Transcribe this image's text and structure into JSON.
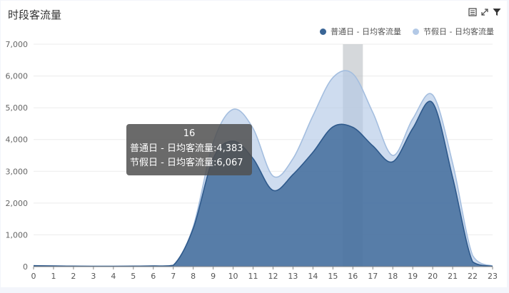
{
  "header": {
    "title": "时段客流量"
  },
  "toolbar": {
    "icons": [
      "data-view-icon",
      "zoom-icon",
      "filter-icon"
    ]
  },
  "colors": {
    "series1": "#3a6596",
    "series2": "#b3c9e6",
    "hover_band": "#b9bec3"
  },
  "chart_data": {
    "type": "area",
    "title": "时段客流量",
    "xlabel": "",
    "ylabel": "",
    "x": [
      "0",
      "1",
      "2",
      "3",
      "4",
      "5",
      "6",
      "7",
      "8",
      "9",
      "10",
      "11",
      "12",
      "13",
      "14",
      "15",
      "16",
      "17",
      "18",
      "19",
      "20",
      "21",
      "22",
      "23"
    ],
    "ylim": [
      0,
      7000
    ],
    "yticks": [
      "0",
      "1,000",
      "2,000",
      "3,000",
      "4,000",
      "5,000",
      "6,000",
      "7,000"
    ],
    "grid": true,
    "legend_position": "top-right",
    "series": [
      {
        "name": "普通日 - 日均客流量",
        "values": [
          30,
          20,
          15,
          10,
          10,
          15,
          20,
          40,
          1200,
          3400,
          3950,
          3400,
          2400,
          2900,
          3600,
          4400,
          4383,
          3800,
          3300,
          4350,
          5150,
          2800,
          150,
          10
        ]
      },
      {
        "name": "节假日 - 日均客流量",
        "values": [
          30,
          20,
          15,
          10,
          10,
          15,
          20,
          40,
          1250,
          3900,
          4950,
          4350,
          2850,
          3400,
          4750,
          5950,
          6067,
          4850,
          3500,
          4650,
          5400,
          3250,
          350,
          15
        ]
      }
    ],
    "hover": {
      "category": "16",
      "lines": [
        "普通日 - 日均客流量:4,383",
        "节假日 - 日均客流量:6,067"
      ]
    }
  }
}
